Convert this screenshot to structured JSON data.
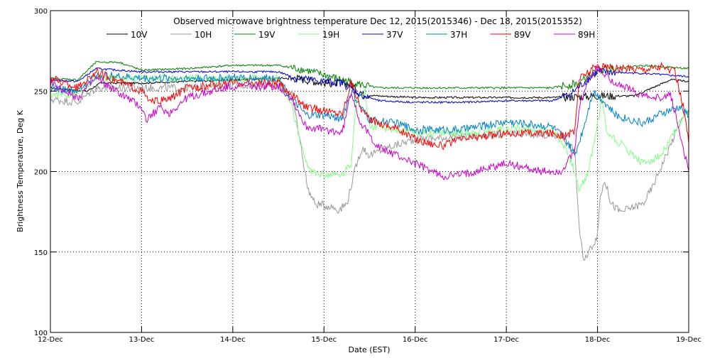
{
  "chart_data": {
    "type": "line",
    "title": "Observed microwave brightness temperature Dec 12, 2015(2015346) - Dec 18, 2015(2015352)",
    "xlabel": "Date (EST)",
    "ylabel": "Brightness Temperature, Deg K",
    "xlim": [
      "12-Dec",
      "19-Dec"
    ],
    "ylim": [
      100,
      300
    ],
    "x_ticks": [
      "12-Dec",
      "13-Dec",
      "14-Dec",
      "15-Dec",
      "16-Dec",
      "17-Dec",
      "18-Dec",
      "19-Dec"
    ],
    "y_ticks": [
      100,
      150,
      200,
      250,
      300
    ],
    "grid": "dotted, at each day and every 50 K",
    "legend_position": "top, below title",
    "x_units": "days since 12-Dec 00:00",
    "series": [
      {
        "name": "10V",
        "color": "#000000",
        "points": [
          [
            0,
            252
          ],
          [
            0.4,
            250
          ],
          [
            0.55,
            255
          ],
          [
            1,
            255
          ],
          [
            1.5,
            256
          ],
          [
            2,
            257
          ],
          [
            2.5,
            258
          ],
          [
            2.7,
            258
          ],
          [
            2.9,
            256
          ],
          [
            3,
            255
          ],
          [
            3.2,
            255
          ],
          [
            3.3,
            254
          ],
          [
            3.4,
            248
          ],
          [
            3.6,
            247
          ],
          [
            4,
            246
          ],
          [
            4.5,
            246
          ],
          [
            5,
            246
          ],
          [
            5.5,
            246
          ],
          [
            6,
            247
          ],
          [
            6.4,
            247
          ],
          [
            6.6,
            252
          ],
          [
            6.8,
            257
          ],
          [
            7,
            256
          ]
        ]
      },
      {
        "name": "10H",
        "color": "#999999",
        "points": [
          [
            0,
            245
          ],
          [
            0.3,
            243
          ],
          [
            0.5,
            252
          ],
          [
            1,
            252
          ],
          [
            1.5,
            252
          ],
          [
            2,
            254
          ],
          [
            2.5,
            253
          ],
          [
            2.65,
            248
          ],
          [
            2.75,
            215
          ],
          [
            2.82,
            190
          ],
          [
            2.9,
            180
          ],
          [
            3,
            179
          ],
          [
            3.1,
            178
          ],
          [
            3.15,
            176
          ],
          [
            3.25,
            180
          ],
          [
            3.35,
            203
          ],
          [
            3.42,
            215
          ],
          [
            3.5,
            210
          ],
          [
            3.7,
            215
          ],
          [
            4,
            220
          ],
          [
            4.3,
            221
          ],
          [
            4.6,
            222
          ],
          [
            5,
            223
          ],
          [
            5.3,
            223
          ],
          [
            5.6,
            222
          ],
          [
            5.75,
            213
          ],
          [
            5.8,
            165
          ],
          [
            5.85,
            143
          ],
          [
            5.9,
            150
          ],
          [
            6,
            160
          ],
          [
            6.03,
            185
          ],
          [
            6.08,
            195
          ],
          [
            6.15,
            180
          ],
          [
            6.25,
            175
          ],
          [
            6.5,
            180
          ],
          [
            6.6,
            190
          ],
          [
            6.75,
            210
          ],
          [
            6.9,
            230
          ],
          [
            7,
            238
          ]
        ]
      },
      {
        "name": "19V",
        "color": "#008000",
        "points": [
          [
            0,
            258
          ],
          [
            0.3,
            257
          ],
          [
            0.5,
            268
          ],
          [
            0.75,
            268
          ],
          [
            1,
            263
          ],
          [
            1.5,
            264
          ],
          [
            2,
            266
          ],
          [
            2.5,
            266
          ],
          [
            2.8,
            263
          ],
          [
            3,
            260
          ],
          [
            3.2,
            257
          ],
          [
            3.4,
            254
          ],
          [
            3.6,
            252
          ],
          [
            4,
            252
          ],
          [
            4.5,
            252
          ],
          [
            5,
            252
          ],
          [
            5.5,
            252
          ],
          [
            5.8,
            255
          ],
          [
            6,
            263
          ],
          [
            6.5,
            266
          ],
          [
            7,
            264
          ]
        ]
      },
      {
        "name": "19H",
        "color": "#80ff80",
        "points": [
          [
            0,
            248
          ],
          [
            0.3,
            248
          ],
          [
            0.5,
            258
          ],
          [
            1,
            258
          ],
          [
            1.5,
            258
          ],
          [
            2,
            258
          ],
          [
            2.5,
            258
          ],
          [
            2.65,
            240
          ],
          [
            2.75,
            215
          ],
          [
            2.85,
            200
          ],
          [
            3,
            198
          ],
          [
            3.2,
            198
          ],
          [
            3.3,
            205
          ],
          [
            3.35,
            245
          ],
          [
            3.45,
            250
          ],
          [
            3.5,
            228
          ],
          [
            3.8,
            226
          ],
          [
            4,
            224
          ],
          [
            4.5,
            224
          ],
          [
            5,
            227
          ],
          [
            5.5,
            226
          ],
          [
            5.65,
            215
          ],
          [
            5.75,
            200
          ],
          [
            5.8,
            188
          ],
          [
            5.9,
            200
          ],
          [
            6,
            230
          ],
          [
            6.05,
            245
          ],
          [
            6.1,
            225
          ],
          [
            6.3,
            215
          ],
          [
            6.5,
            205
          ],
          [
            6.7,
            210
          ],
          [
            6.9,
            230
          ],
          [
            7,
            235
          ]
        ]
      },
      {
        "name": "37V",
        "color": "#0000cc",
        "points": [
          [
            0,
            257
          ],
          [
            0.3,
            256
          ],
          [
            0.5,
            264
          ],
          [
            1,
            262
          ],
          [
            1.5,
            262
          ],
          [
            2,
            262
          ],
          [
            2.5,
            262
          ],
          [
            2.7,
            258
          ],
          [
            3,
            256
          ],
          [
            3.2,
            255
          ],
          [
            3.4,
            248
          ],
          [
            3.6,
            244
          ],
          [
            4,
            243
          ],
          [
            4.5,
            243
          ],
          [
            5,
            244
          ],
          [
            5.5,
            244
          ],
          [
            5.7,
            248
          ],
          [
            6,
            262
          ],
          [
            6.5,
            261
          ],
          [
            7,
            259
          ]
        ]
      },
      {
        "name": "37H",
        "color": "#0080cc",
        "points": [
          [
            0,
            252
          ],
          [
            0.3,
            250
          ],
          [
            0.5,
            260
          ],
          [
            1,
            258
          ],
          [
            1.5,
            258
          ],
          [
            2,
            258
          ],
          [
            2.5,
            258
          ],
          [
            2.65,
            245
          ],
          [
            2.8,
            235
          ],
          [
            3,
            235
          ],
          [
            3.2,
            233
          ],
          [
            3.3,
            250
          ],
          [
            3.4,
            240
          ],
          [
            3.5,
            232
          ],
          [
            3.8,
            230
          ],
          [
            4,
            226
          ],
          [
            4.5,
            226
          ],
          [
            5,
            231
          ],
          [
            5.5,
            228
          ],
          [
            5.65,
            220
          ],
          [
            5.75,
            210
          ],
          [
            5.85,
            228
          ],
          [
            5.95,
            250
          ],
          [
            6.05,
            245
          ],
          [
            6.2,
            235
          ],
          [
            6.5,
            230
          ],
          [
            6.7,
            236
          ],
          [
            6.9,
            240
          ],
          [
            7,
            235
          ]
        ]
      },
      {
        "name": "89V",
        "color": "#ff0000",
        "points": [
          [
            0,
            258
          ],
          [
            0.3,
            252
          ],
          [
            0.5,
            262
          ],
          [
            1,
            250
          ],
          [
            1.1,
            243
          ],
          [
            1.3,
            245
          ],
          [
            1.5,
            252
          ],
          [
            2,
            255
          ],
          [
            2.5,
            255
          ],
          [
            2.65,
            248
          ],
          [
            2.8,
            240
          ],
          [
            3,
            238
          ],
          [
            3.2,
            236
          ],
          [
            3.3,
            256
          ],
          [
            3.4,
            240
          ],
          [
            3.5,
            232
          ],
          [
            3.8,
            227
          ],
          [
            4,
            220
          ],
          [
            4.3,
            216
          ],
          [
            4.5,
            220
          ],
          [
            5,
            224
          ],
          [
            5.5,
            224
          ],
          [
            5.65,
            222
          ],
          [
            5.75,
            225
          ],
          [
            5.8,
            258
          ],
          [
            5.9,
            262
          ],
          [
            6,
            266
          ],
          [
            6.2,
            264
          ],
          [
            6.5,
            264
          ],
          [
            6.7,
            265
          ],
          [
            6.85,
            262
          ],
          [
            6.95,
            238
          ],
          [
            7,
            218
          ]
        ]
      },
      {
        "name": "89H",
        "color": "#cc00cc",
        "points": [
          [
            0,
            255
          ],
          [
            0.3,
            246
          ],
          [
            0.5,
            258
          ],
          [
            1,
            240
          ],
          [
            1.05,
            232
          ],
          [
            1.2,
            240
          ],
          [
            1.3,
            236
          ],
          [
            1.5,
            246
          ],
          [
            2,
            253
          ],
          [
            2.5,
            253
          ],
          [
            2.65,
            245
          ],
          [
            2.8,
            228
          ],
          [
            3,
            226
          ],
          [
            3.2,
            224
          ],
          [
            3.3,
            250
          ],
          [
            3.4,
            230
          ],
          [
            3.6,
            215
          ],
          [
            4,
            205
          ],
          [
            4.3,
            197
          ],
          [
            4.5,
            198
          ],
          [
            5,
            205
          ],
          [
            5.4,
            200
          ],
          [
            5.6,
            200
          ],
          [
            5.75,
            212
          ],
          [
            5.8,
            240
          ],
          [
            5.9,
            258
          ],
          [
            6,
            264
          ],
          [
            6.2,
            255
          ],
          [
            6.4,
            250
          ],
          [
            6.6,
            245
          ],
          [
            6.8,
            248
          ],
          [
            7,
            200
          ]
        ]
      }
    ]
  }
}
